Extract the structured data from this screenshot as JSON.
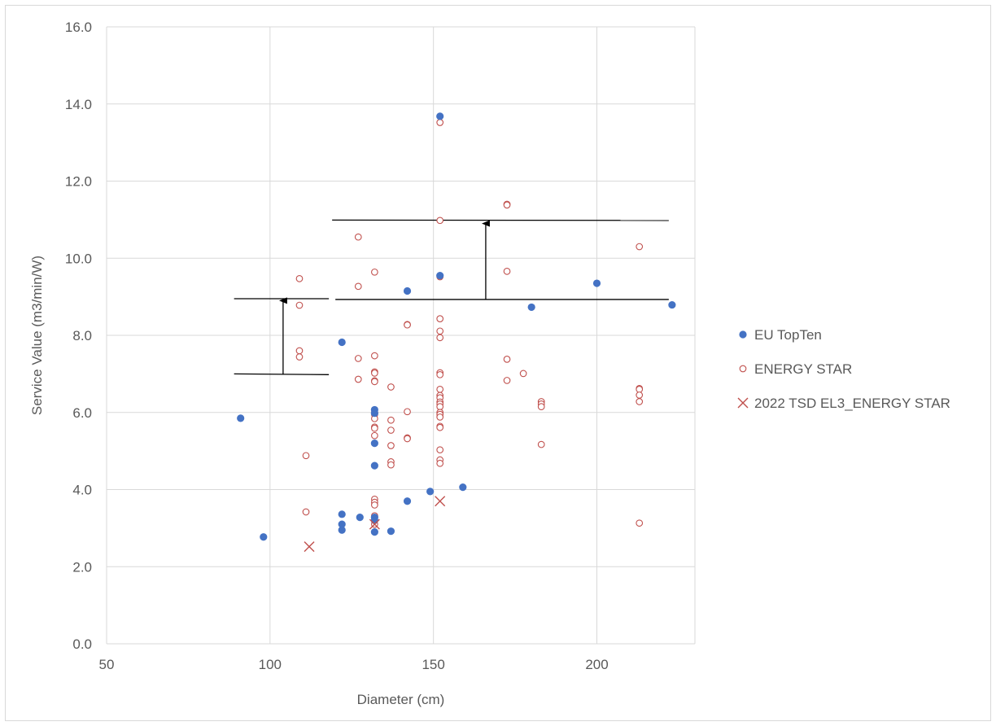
{
  "chart_data": {
    "type": "scatter",
    "title": "",
    "xlabel": "Diameter (cm)",
    "ylabel": "Service Value (m3/min/W)",
    "xlim": [
      50,
      230
    ],
    "ylim": [
      0,
      16
    ],
    "x_ticks": [
      50,
      100,
      150,
      200
    ],
    "x_tick_labels": [
      "50",
      "100",
      "150",
      "200"
    ],
    "y_ticks": [
      0,
      2,
      4,
      6,
      8,
      10,
      12,
      14,
      16
    ],
    "y_tick_labels": [
      "0.0",
      "2.0",
      "4.0",
      "6.0",
      "8.0",
      "10.0",
      "12.0",
      "14.0",
      "16.0"
    ],
    "grid": true,
    "legend_position": "right",
    "series": [
      {
        "name": "EU TopTen",
        "marker": "filled-circle",
        "color": "#4472c4",
        "points": [
          [
            91,
            5.85
          ],
          [
            98,
            2.77
          ],
          [
            122,
            7.82
          ],
          [
            122,
            3.36
          ],
          [
            122,
            3.1
          ],
          [
            122,
            2.95
          ],
          [
            127.5,
            3.28
          ],
          [
            132,
            6.07
          ],
          [
            132,
            5.98
          ],
          [
            132,
            5.2
          ],
          [
            132,
            4.62
          ],
          [
            132,
            3.28
          ],
          [
            132,
            3.2
          ],
          [
            132,
            2.9
          ],
          [
            137,
            2.92
          ],
          [
            142,
            9.15
          ],
          [
            142,
            3.7
          ],
          [
            149,
            3.95
          ],
          [
            152,
            13.68
          ],
          [
            152,
            9.55
          ],
          [
            159,
            4.06
          ],
          [
            180,
            8.73
          ],
          [
            200,
            9.35
          ],
          [
            223,
            8.79
          ]
        ]
      },
      {
        "name": "ENERGY STAR",
        "marker": "open-circle",
        "color": "#c0504d",
        "points": [
          [
            109,
            9.47
          ],
          [
            109,
            8.78
          ],
          [
            109,
            7.6
          ],
          [
            109,
            7.44
          ],
          [
            111,
            4.88
          ],
          [
            111,
            3.42
          ],
          [
            127,
            10.55
          ],
          [
            127,
            9.27
          ],
          [
            127,
            7.4
          ],
          [
            127,
            6.86
          ],
          [
            132,
            9.64
          ],
          [
            132,
            7.47
          ],
          [
            132,
            7.05
          ],
          [
            132,
            7.02
          ],
          [
            132,
            6.82
          ],
          [
            132,
            6.8
          ],
          [
            132,
            6.01
          ],
          [
            132,
            5.95
          ],
          [
            132,
            5.84
          ],
          [
            132,
            5.62
          ],
          [
            132,
            5.59
          ],
          [
            132,
            5.4
          ],
          [
            132,
            3.75
          ],
          [
            132,
            3.67
          ],
          [
            132,
            3.6
          ],
          [
            132,
            3.32
          ],
          [
            132,
            3.2
          ],
          [
            132,
            3.1
          ],
          [
            137,
            6.66
          ],
          [
            137,
            5.8
          ],
          [
            137,
            5.54
          ],
          [
            137,
            5.14
          ],
          [
            137,
            4.72
          ],
          [
            137,
            4.64
          ],
          [
            142,
            8.28
          ],
          [
            142,
            8.27
          ],
          [
            142,
            6.02
          ],
          [
            142,
            5.34
          ],
          [
            142,
            5.32
          ],
          [
            152,
            13.52
          ],
          [
            152,
            10.98
          ],
          [
            152,
            9.52
          ],
          [
            152,
            8.43
          ],
          [
            152,
            8.11
          ],
          [
            152,
            7.94
          ],
          [
            152,
            7.03
          ],
          [
            152,
            6.98
          ],
          [
            152,
            6.6
          ],
          [
            152,
            6.44
          ],
          [
            152,
            6.38
          ],
          [
            152,
            6.27
          ],
          [
            152,
            6.22
          ],
          [
            152,
            6.15
          ],
          [
            152,
            6.0
          ],
          [
            152,
            5.95
          ],
          [
            152,
            5.88
          ],
          [
            152,
            5.64
          ],
          [
            152,
            5.61
          ],
          [
            152,
            5.03
          ],
          [
            152,
            4.77
          ],
          [
            152,
            4.68
          ],
          [
            172.5,
            11.4
          ],
          [
            172.5,
            11.38
          ],
          [
            172.5,
            9.66
          ],
          [
            172.5,
            7.38
          ],
          [
            172.5,
            6.83
          ],
          [
            177.5,
            7.01
          ],
          [
            183,
            6.28
          ],
          [
            183,
            6.22
          ],
          [
            183,
            6.15
          ],
          [
            183,
            5.17
          ],
          [
            213,
            10.3
          ],
          [
            213,
            6.62
          ],
          [
            213,
            6.6
          ],
          [
            213,
            6.45
          ],
          [
            213,
            6.28
          ],
          [
            213,
            3.13
          ]
        ]
      },
      {
        "name": "2022 TSD EL3_ENERGY STAR",
        "marker": "x",
        "color": "#c0504d",
        "points": [
          [
            112,
            2.52
          ],
          [
            132,
            3.1
          ],
          [
            152,
            3.7
          ]
        ]
      }
    ],
    "annotations": [
      {
        "type": "line",
        "x": [
          89,
          118
        ],
        "y": [
          8.95,
          8.95
        ]
      },
      {
        "type": "line",
        "x": [
          89,
          118
        ],
        "y": [
          7.0,
          6.98
        ]
      },
      {
        "type": "arrow",
        "x": [
          104,
          104
        ],
        "y": [
          6.98,
          8.9
        ]
      },
      {
        "type": "line",
        "x": [
          119,
          222
        ],
        "y": [
          10.99,
          10.98
        ]
      },
      {
        "type": "line",
        "x": [
          120,
          222
        ],
        "y": [
          8.93,
          8.93
        ]
      },
      {
        "type": "arrow",
        "x": [
          166,
          166
        ],
        "y": [
          8.93,
          10.9
        ]
      }
    ]
  }
}
